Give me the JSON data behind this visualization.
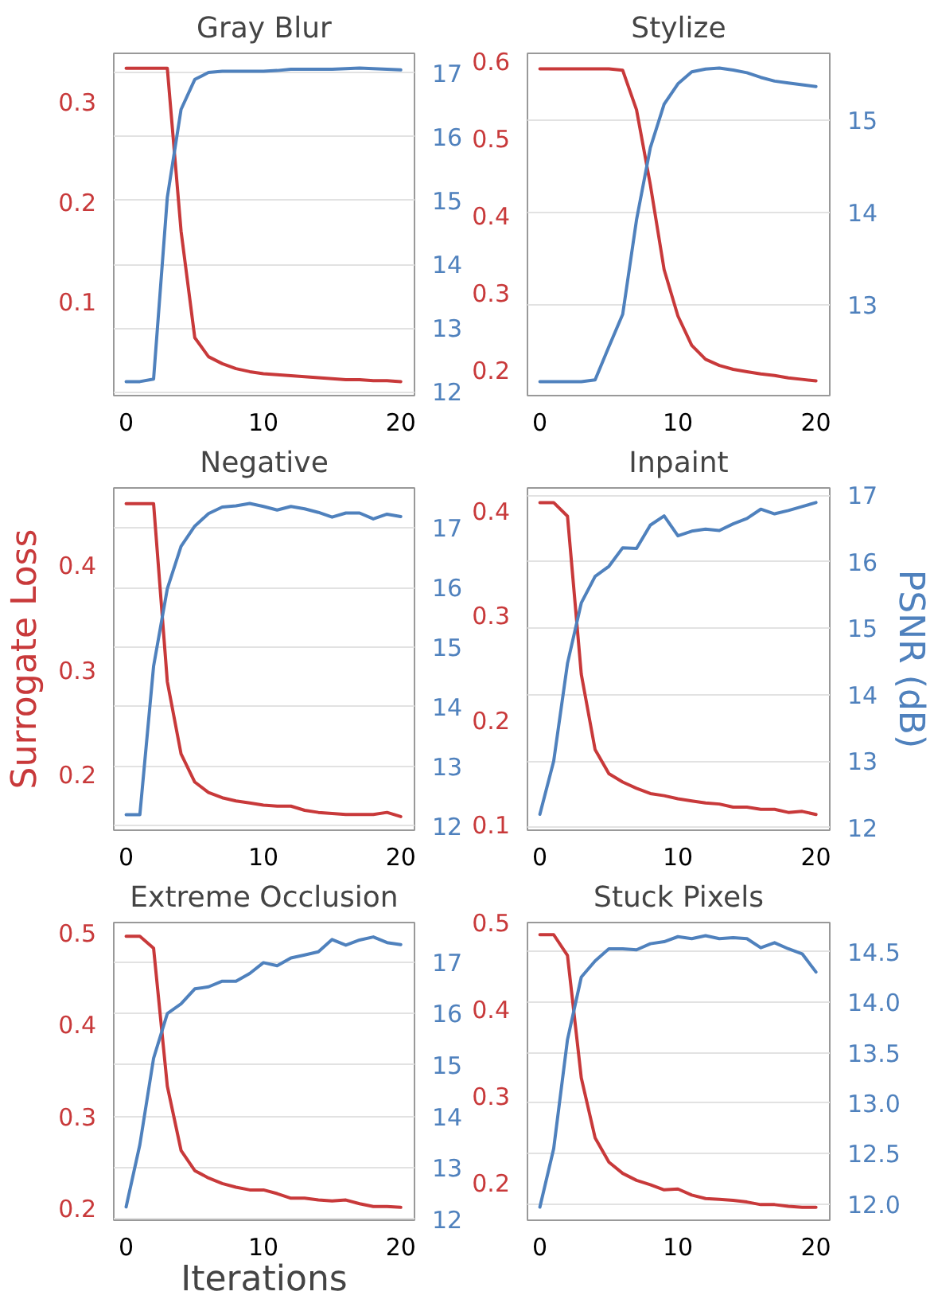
{
  "chart_data": [
    {
      "type": "line",
      "title": "Gray Blur",
      "x": [
        0,
        1,
        2,
        3,
        4,
        5,
        6,
        7,
        8,
        9,
        10,
        11,
        12,
        13,
        14,
        15,
        16,
        17,
        18,
        19,
        20
      ],
      "xlim": [
        -0.9,
        21
      ],
      "xticks": [
        0,
        10,
        20
      ],
      "ylim": [
        0.006,
        0.349
      ],
      "yticks": [
        0.1,
        0.2,
        0.3
      ],
      "y2lim": [
        11.94,
        17.31
      ],
      "y2ticks": [
        12,
        13,
        14,
        15,
        16,
        17
      ],
      "grid": "y2",
      "series": [
        {
          "color": "#c8393a",
          "values": [
            0.334,
            0.334,
            0.334,
            0.334,
            0.171,
            0.064,
            0.045,
            0.038,
            0.033,
            0.03,
            0.028,
            0.027,
            0.026,
            0.025,
            0.024,
            0.023,
            0.022,
            0.022,
            0.021,
            0.021,
            0.02
          ]
        },
        {
          "color": "#4f81bd",
          "axis": "y2",
          "values": [
            12.16,
            12.16,
            12.2,
            15.05,
            16.43,
            16.9,
            17.01,
            17.03,
            17.03,
            17.03,
            17.03,
            17.04,
            17.06,
            17.06,
            17.06,
            17.06,
            17.07,
            17.08,
            17.07,
            17.06,
            17.05
          ]
        }
      ]
    },
    {
      "type": "line",
      "title": "Stylize",
      "x": [
        0,
        1,
        2,
        3,
        4,
        5,
        6,
        7,
        8,
        9,
        10,
        11,
        12,
        13,
        14,
        15,
        16,
        17,
        18,
        19,
        20
      ],
      "xlim": [
        -0.9,
        21
      ],
      "xticks": [
        0,
        10,
        20
      ],
      "ylim": [
        0.167,
        0.61
      ],
      "yticks": [
        0.2,
        0.3,
        0.4,
        0.5,
        0.6
      ],
      "y2lim": [
        12.02,
        15.72
      ],
      "y2ticks": [
        13,
        14,
        15
      ],
      "grid": "y2",
      "series": [
        {
          "color": "#c8393a",
          "values": [
            0.59,
            0.59,
            0.59,
            0.59,
            0.59,
            0.59,
            0.588,
            0.537,
            0.44,
            0.33,
            0.27,
            0.232,
            0.214,
            0.206,
            0.201,
            0.198,
            0.195,
            0.193,
            0.19,
            0.188,
            0.186
          ]
        },
        {
          "color": "#4f81bd",
          "axis": "y2",
          "values": [
            12.17,
            12.17,
            12.17,
            12.17,
            12.19,
            12.55,
            12.9,
            13.92,
            14.7,
            15.17,
            15.39,
            15.52,
            15.55,
            15.56,
            15.54,
            15.51,
            15.46,
            15.42,
            15.4,
            15.38,
            15.36
          ]
        }
      ]
    },
    {
      "type": "line",
      "title": "Negative",
      "ylabel": "Surrogate Loss",
      "x": [
        0,
        1,
        2,
        3,
        4,
        5,
        6,
        7,
        8,
        9,
        10,
        11,
        12,
        13,
        14,
        15,
        16,
        17,
        18,
        19,
        20
      ],
      "xlim": [
        -0.9,
        21
      ],
      "xticks": [
        0,
        10,
        20
      ],
      "ylim": [
        0.147,
        0.474
      ],
      "yticks": [
        0.2,
        0.3,
        0.4
      ],
      "y2lim": [
        11.93,
        17.67
      ],
      "y2ticks": [
        12,
        13,
        14,
        15,
        16,
        17
      ],
      "grid": "y2",
      "series": [
        {
          "color": "#c8393a",
          "values": [
            0.459,
            0.459,
            0.459,
            0.289,
            0.22,
            0.193,
            0.183,
            0.178,
            0.175,
            0.173,
            0.171,
            0.17,
            0.17,
            0.166,
            0.164,
            0.163,
            0.162,
            0.162,
            0.162,
            0.164,
            0.16
          ]
        },
        {
          "color": "#4f81bd",
          "axis": "y2",
          "values": [
            12.19,
            12.19,
            14.68,
            15.98,
            16.69,
            17.03,
            17.24,
            17.35,
            17.37,
            17.41,
            17.36,
            17.3,
            17.36,
            17.32,
            17.26,
            17.18,
            17.25,
            17.25,
            17.15,
            17.23,
            17.19
          ]
        }
      ]
    },
    {
      "type": "line",
      "title": "Inpaint",
      "y2label": "PSNR (dB)",
      "x": [
        0,
        1,
        2,
        3,
        4,
        5,
        6,
        7,
        8,
        9,
        10,
        11,
        12,
        13,
        14,
        15,
        16,
        17,
        18,
        19,
        20
      ],
      "xlim": [
        -0.9,
        21
      ],
      "xticks": [
        0,
        10,
        20
      ],
      "ylim": [
        0.095,
        0.422
      ],
      "yticks": [
        0.1,
        0.2,
        0.3,
        0.4
      ],
      "y2lim": [
        11.96,
        17.11
      ],
      "y2ticks": [
        12,
        13,
        14,
        15,
        16,
        17
      ],
      "grid": "y2",
      "series": [
        {
          "color": "#c8393a",
          "values": [
            0.408,
            0.408,
            0.395,
            0.244,
            0.172,
            0.149,
            0.141,
            0.135,
            0.13,
            0.128,
            0.125,
            0.123,
            0.121,
            0.12,
            0.117,
            0.117,
            0.115,
            0.115,
            0.112,
            0.113,
            0.11
          ]
        },
        {
          "color": "#4f81bd",
          "axis": "y2",
          "values": [
            12.2,
            13.0,
            14.47,
            15.38,
            15.78,
            15.93,
            16.21,
            16.2,
            16.55,
            16.69,
            16.39,
            16.46,
            16.49,
            16.47,
            16.57,
            16.65,
            16.79,
            16.72,
            16.77,
            16.83,
            16.89
          ]
        }
      ]
    },
    {
      "type": "line",
      "title": "Extreme Occlusion",
      "xlabel": "Iterations",
      "x": [
        0,
        1,
        2,
        3,
        4,
        5,
        6,
        7,
        8,
        9,
        10,
        11,
        12,
        13,
        14,
        15,
        16,
        17,
        18,
        19,
        20
      ],
      "xlim": [
        -0.9,
        21
      ],
      "xticks": [
        0,
        10,
        20
      ],
      "ylim": [
        0.187,
        0.511
      ],
      "yticks": [
        0.2,
        0.3,
        0.4,
        0.5
      ],
      "y2lim": [
        11.98,
        17.77
      ],
      "y2ticks": [
        12,
        13,
        14,
        15,
        16,
        17
      ],
      "grid": "y2",
      "series": [
        {
          "color": "#c8393a",
          "values": [
            0.496,
            0.496,
            0.483,
            0.333,
            0.263,
            0.241,
            0.233,
            0.227,
            0.223,
            0.22,
            0.22,
            0.216,
            0.211,
            0.211,
            0.209,
            0.208,
            0.209,
            0.205,
            0.202,
            0.202,
            0.201
          ]
        },
        {
          "color": "#4f81bd",
          "axis": "y2",
          "values": [
            12.24,
            13.45,
            15.13,
            16.0,
            16.19,
            16.48,
            16.52,
            16.63,
            16.63,
            16.78,
            16.99,
            16.93,
            17.08,
            17.14,
            17.2,
            17.44,
            17.33,
            17.43,
            17.49,
            17.38,
            17.34
          ]
        }
      ]
    },
    {
      "type": "line",
      "title": "Stuck Pixels",
      "x": [
        0,
        1,
        2,
        3,
        4,
        5,
        6,
        7,
        8,
        9,
        10,
        11,
        12,
        13,
        14,
        15,
        16,
        17,
        18,
        19,
        20
      ],
      "xlim": [
        -0.9,
        21
      ],
      "xticks": [
        0,
        10,
        20
      ],
      "ylim": [
        0.157,
        0.5
      ],
      "yticks": [
        0.2,
        0.3,
        0.4,
        0.5
      ],
      "y2lim": [
        11.84,
        14.79
      ],
      "y2ticks": [
        {
          "value": 12,
          "label": "12.0"
        },
        12.5,
        {
          "value": 13,
          "label": "13.0"
        },
        13.5,
        {
          "value": 14,
          "label": "14.0"
        },
        14.5
      ],
      "grid": "y2",
      "series": [
        {
          "color": "#c8393a",
          "values": [
            0.486,
            0.486,
            0.462,
            0.321,
            0.252,
            0.224,
            0.211,
            0.203,
            0.198,
            0.192,
            0.193,
            0.186,
            0.182,
            0.181,
            0.18,
            0.178,
            0.175,
            0.175,
            0.173,
            0.172,
            0.172
          ]
        },
        {
          "color": "#4f81bd",
          "axis": "y2",
          "values": [
            11.97,
            12.55,
            13.63,
            14.25,
            14.41,
            14.53,
            14.53,
            14.52,
            14.58,
            14.6,
            14.65,
            14.63,
            14.66,
            14.63,
            14.64,
            14.63,
            14.54,
            14.59,
            14.53,
            14.48,
            14.3
          ]
        }
      ]
    }
  ]
}
